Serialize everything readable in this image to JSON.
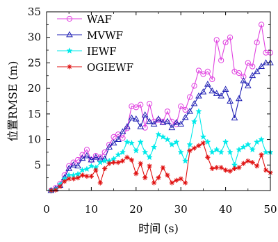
{
  "chart_data": {
    "type": "line",
    "xlabel": "时间 (s)",
    "ylabel": "位置RMSE (m)",
    "xlim": [
      0,
      50
    ],
    "ylim": [
      0,
      35
    ],
    "xticks": [
      0,
      10,
      20,
      30,
      40,
      50
    ],
    "yticks": [
      5,
      10,
      15,
      20,
      25,
      30,
      35
    ],
    "legend_position": "top-left",
    "x": [
      1,
      2,
      3,
      4,
      5,
      6,
      7,
      8,
      9,
      10,
      11,
      12,
      13,
      14,
      15,
      16,
      17,
      18,
      19,
      20,
      21,
      22,
      23,
      24,
      25,
      26,
      27,
      28,
      29,
      30,
      31,
      32,
      33,
      34,
      35,
      36,
      37,
      38,
      39,
      40,
      41,
      42,
      43,
      44,
      45,
      46,
      47,
      48,
      49,
      50
    ],
    "series": [
      {
        "name": "WAF",
        "color": "#e040e0",
        "marker": "circle",
        "values": [
          0,
          0.5,
          1.3,
          3.0,
          4.8,
          5.5,
          6.0,
          7.0,
          8.0,
          6.0,
          6.8,
          6.5,
          7.5,
          9.0,
          10.5,
          11.0,
          10.3,
          12.2,
          16.5,
          16.3,
          16.8,
          12.3,
          17.0,
          13.5,
          13.8,
          13.5,
          15.5,
          13.5,
          13.0,
          16.5,
          15.8,
          18.3,
          20.5,
          23.5,
          22.8,
          23.3,
          21.8,
          29.5,
          25.5,
          29.0,
          30.0,
          23.3,
          23.0,
          22.3,
          25.0,
          24.3,
          29.0,
          32.5,
          27.0,
          27.0
        ]
      },
      {
        "name": "MVWF",
        "color": "#1f1fb4",
        "marker": "triangle",
        "values": [
          0,
          0.3,
          1.0,
          2.5,
          4.3,
          5.0,
          4.8,
          6.3,
          6.8,
          6.0,
          6.5,
          6.2,
          6.2,
          8.5,
          9.3,
          10.0,
          11.5,
          12.5,
          14.2,
          14.0,
          12.5,
          14.8,
          13.5,
          13.0,
          14.0,
          13.3,
          13.5,
          12.3,
          13.3,
          13.0,
          14.3,
          15.5,
          17.0,
          18.5,
          19.3,
          20.8,
          19.5,
          19.0,
          18.5,
          19.8,
          17.5,
          14.2,
          18.0,
          21.5,
          20.5,
          22.5,
          23.3,
          24.3,
          25.0,
          25.0
        ]
      },
      {
        "name": "IEWF",
        "color": "#00eaea",
        "marker": "star",
        "values": [
          0,
          0.2,
          1.2,
          2.3,
          3.0,
          3.0,
          3.2,
          4.0,
          4.2,
          4.8,
          4.5,
          5.5,
          5.8,
          5.8,
          6.2,
          7.0,
          7.5,
          9.5,
          9.3,
          7.8,
          9.5,
          7.5,
          6.5,
          8.5,
          11.0,
          10.5,
          10.0,
          9.0,
          9.5,
          7.5,
          5.8,
          9.0,
          13.5,
          15.5,
          10.5,
          9.5,
          7.5,
          8.0,
          7.5,
          9.5,
          7.5,
          5.0,
          8.0,
          8.5,
          9.0,
          8.0,
          9.5,
          10.0,
          7.5,
          7.5
        ]
      },
      {
        "name": "OGIEWF",
        "color": "#e01010",
        "marker": "asterisk",
        "values": [
          0,
          0.1,
          0.8,
          1.8,
          2.3,
          2.3,
          2.5,
          3.0,
          2.8,
          2.8,
          4.0,
          1.5,
          4.3,
          5.3,
          5.5,
          5.5,
          5.8,
          6.5,
          6.0,
          3.3,
          5.3,
          2.5,
          4.8,
          1.5,
          2.5,
          4.5,
          3.0,
          1.5,
          2.0,
          2.3,
          1.5,
          7.8,
          8.3,
          8.8,
          9.3,
          6.5,
          4.3,
          4.5,
          4.5,
          4.0,
          3.8,
          4.3,
          4.5,
          5.3,
          5.8,
          5.5,
          4.8,
          7.0,
          4.0,
          3.5
        ]
      }
    ]
  }
}
